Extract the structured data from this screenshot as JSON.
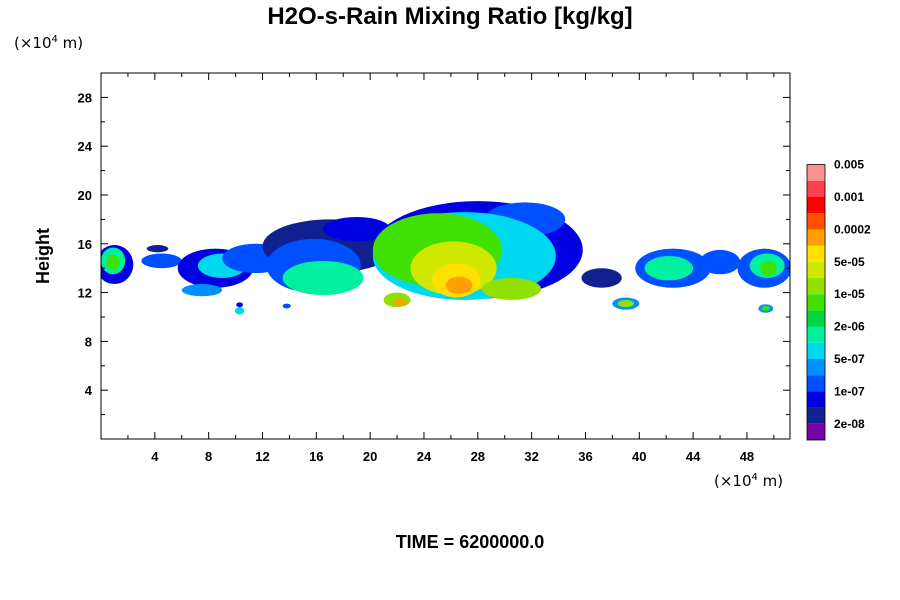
{
  "chart_data": {
    "type": "heatmap",
    "title": "H2O-s-Rain Mixing Ratio [kg/kg]",
    "ylabel": "Height",
    "xlabel": "",
    "x_unit": "(×10",
    "x_unit_exp": "4",
    "x_unit_tail": " m)",
    "y_unit": "(×10",
    "y_unit_exp": "4",
    "y_unit_tail": " m)",
    "xlim": [
      0,
      51.2
    ],
    "ylim": [
      0,
      30
    ],
    "xticks": [
      4,
      8,
      12,
      16,
      20,
      24,
      28,
      32,
      36,
      40,
      44,
      48
    ],
    "yticks": [
      4,
      8,
      12,
      16,
      20,
      24,
      28
    ],
    "footer": "TIME = 6200000.0",
    "colorbar": {
      "colors": [
        "#7a00a8",
        "#102090",
        "#0000e0",
        "#0050ff",
        "#0090ff",
        "#00d8f0",
        "#00f0a0",
        "#00d840",
        "#40e000",
        "#90e000",
        "#d0e800",
        "#ffe000",
        "#ffa000",
        "#ff5000",
        "#ff0000",
        "#ff4050",
        "#ff9090"
      ],
      "labels": [
        "2e-08",
        "1e-07",
        "5e-07",
        "2e-06",
        "1e-05",
        "5e-05",
        "0.0002",
        "0.001",
        "0.005"
      ]
    },
    "regions": [
      {
        "x": 1.0,
        "y": 14.3,
        "rx": 1.4,
        "ry": 1.6,
        "level": 2
      },
      {
        "x": 0.9,
        "y": 14.6,
        "rx": 0.9,
        "ry": 1.1,
        "level": 6
      },
      {
        "x": 0.9,
        "y": 14.5,
        "rx": 0.5,
        "ry": 0.6,
        "level": 8
      },
      {
        "x": 4.5,
        "y": 14.6,
        "rx": 1.5,
        "ry": 0.6,
        "level": 3
      },
      {
        "x": 4.2,
        "y": 15.6,
        "rx": 0.8,
        "ry": 0.3,
        "level": 1
      },
      {
        "x": 8.5,
        "y": 14.0,
        "rx": 2.8,
        "ry": 1.6,
        "level": 2
      },
      {
        "x": 9.0,
        "y": 14.2,
        "rx": 1.8,
        "ry": 1.0,
        "level": 5
      },
      {
        "x": 11.5,
        "y": 14.8,
        "rx": 2.5,
        "ry": 1.2,
        "level": 3
      },
      {
        "x": 7.5,
        "y": 12.2,
        "rx": 1.5,
        "ry": 0.5,
        "level": 4
      },
      {
        "x": 10.3,
        "y": 10.5,
        "rx": 0.35,
        "ry": 0.3,
        "level": 5
      },
      {
        "x": 10.3,
        "y": 11.0,
        "rx": 0.25,
        "ry": 0.2,
        "level": 2
      },
      {
        "x": 13.8,
        "y": 10.9,
        "rx": 0.3,
        "ry": 0.2,
        "level": 3
      },
      {
        "x": 17.0,
        "y": 15.8,
        "rx": 5.0,
        "ry": 2.2,
        "level": 1
      },
      {
        "x": 15.8,
        "y": 14.2,
        "rx": 3.5,
        "ry": 2.2,
        "level": 3
      },
      {
        "x": 16.5,
        "y": 13.2,
        "rx": 3.0,
        "ry": 1.4,
        "level": 6
      },
      {
        "x": 19.0,
        "y": 17.2,
        "rx": 2.5,
        "ry": 1.0,
        "level": 2
      },
      {
        "x": 28.0,
        "y": 15.5,
        "rx": 7.8,
        "ry": 4.0,
        "level": 2
      },
      {
        "x": 31.5,
        "y": 18.0,
        "rx": 3.0,
        "ry": 1.4,
        "level": 3
      },
      {
        "x": 27.0,
        "y": 15.0,
        "rx": 6.8,
        "ry": 3.6,
        "level": 5
      },
      {
        "x": 25.0,
        "y": 15.5,
        "rx": 4.8,
        "ry": 3.0,
        "level": 8
      },
      {
        "x": 26.2,
        "y": 14.0,
        "rx": 3.2,
        "ry": 2.2,
        "level": 10
      },
      {
        "x": 26.4,
        "y": 13.0,
        "rx": 1.8,
        "ry": 1.4,
        "level": 11
      },
      {
        "x": 26.6,
        "y": 12.6,
        "rx": 1.0,
        "ry": 0.7,
        "level": 12
      },
      {
        "x": 30.5,
        "y": 12.3,
        "rx": 2.2,
        "ry": 0.9,
        "level": 9
      },
      {
        "x": 22.0,
        "y": 11.4,
        "rx": 1.0,
        "ry": 0.6,
        "level": 9
      },
      {
        "x": 22.2,
        "y": 11.2,
        "rx": 0.5,
        "ry": 0.3,
        "level": 12
      },
      {
        "x": 39.0,
        "y": 11.1,
        "rx": 1.0,
        "ry": 0.5,
        "level": 4
      },
      {
        "x": 39.0,
        "y": 11.1,
        "rx": 0.6,
        "ry": 0.3,
        "level": 9
      },
      {
        "x": 37.2,
        "y": 13.2,
        "rx": 1.5,
        "ry": 0.8,
        "level": 1
      },
      {
        "x": 42.5,
        "y": 14.0,
        "rx": 2.8,
        "ry": 1.6,
        "level": 3
      },
      {
        "x": 42.2,
        "y": 14.0,
        "rx": 1.8,
        "ry": 1.0,
        "level": 6
      },
      {
        "x": 46.0,
        "y": 14.5,
        "rx": 1.5,
        "ry": 1.0,
        "level": 3
      },
      {
        "x": 49.3,
        "y": 14.0,
        "rx": 2.0,
        "ry": 1.6,
        "level": 3
      },
      {
        "x": 49.5,
        "y": 14.2,
        "rx": 1.3,
        "ry": 1.0,
        "level": 6
      },
      {
        "x": 49.6,
        "y": 14.0,
        "rx": 0.6,
        "ry": 0.6,
        "level": 8
      },
      {
        "x": 49.4,
        "y": 10.7,
        "rx": 0.55,
        "ry": 0.35,
        "level": 4
      },
      {
        "x": 49.4,
        "y": 10.7,
        "rx": 0.3,
        "ry": 0.2,
        "level": 8
      }
    ]
  }
}
